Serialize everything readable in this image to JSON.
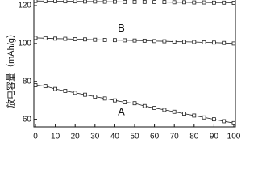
{
  "chart_data": {
    "type": "line",
    "y_label": "放电容量（mAh/g）",
    "x": [
      0,
      5,
      10,
      15,
      20,
      25,
      30,
      35,
      40,
      45,
      50,
      55,
      60,
      65,
      70,
      75,
      80,
      85,
      90,
      95,
      100
    ],
    "series": [
      {
        "color": "#222222",
        "values": [
          122.5,
          122.4,
          122.4,
          122.3,
          122.3,
          122.2,
          122.2,
          122.1,
          122.1,
          122,
          122,
          122,
          121.9,
          121.9,
          121.8,
          121.8,
          121.7,
          121.7,
          121.6,
          121.6,
          121.5
        ]
      },
      {
        "name": "B",
        "color": "#222222",
        "values": [
          103,
          102.8,
          102.6,
          102.5,
          102.3,
          102.2,
          102,
          101.9,
          101.8,
          101.7,
          101.6,
          101.5,
          101.3,
          101.2,
          101,
          100.9,
          100.8,
          100.6,
          100.5,
          100.3,
          100
        ]
      },
      {
        "name": "A",
        "color": "#222222",
        "values": [
          78,
          77.5,
          76,
          75,
          74,
          73,
          72,
          71,
          70,
          69,
          68.5,
          67,
          66,
          65,
          64,
          63,
          62,
          61,
          60,
          59,
          58
        ]
      }
    ],
    "xlim": [
      0,
      100
    ],
    "xticks": [
      0,
      10,
      20,
      30,
      40,
      50,
      60,
      70,
      80,
      90,
      100
    ],
    "ylim": [
      56,
      123
    ],
    "yticks": [
      60,
      80,
      100,
      120
    ]
  }
}
